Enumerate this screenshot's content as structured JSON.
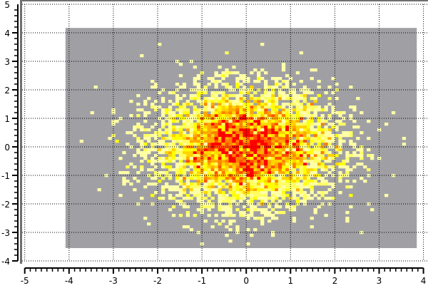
{
  "chart_data": {
    "type": "heatmap",
    "title": "",
    "xlabel": "",
    "ylabel": "",
    "xlim": [
      -5,
      4
    ],
    "ylim": [
      -4,
      5
    ],
    "x_ticks": [
      "-5",
      "-4",
      "-3",
      "-2",
      "-1",
      "0",
      "1",
      "2",
      "3",
      "4"
    ],
    "y_ticks": [
      "5",
      "4",
      "3",
      "2",
      "1",
      "0",
      "-1",
      "-2",
      "-3",
      "-4"
    ],
    "grid": true,
    "histogram_range": {
      "x": [
        -4.08,
        3.85
      ],
      "y": [
        -3.55,
        4.17
      ]
    },
    "bin_size": {
      "x": 0.08,
      "y": 0.1
    },
    "distribution": {
      "center": [
        0,
        0
      ],
      "std": [
        1,
        1
      ]
    },
    "background_color": "#a0a0a4",
    "color_scale": [
      "#ffffa8",
      "#ffff60",
      "#ffff00",
      "#ffd400",
      "#ffaa00",
      "#ff8000",
      "#ff5000",
      "#ff0000"
    ]
  }
}
